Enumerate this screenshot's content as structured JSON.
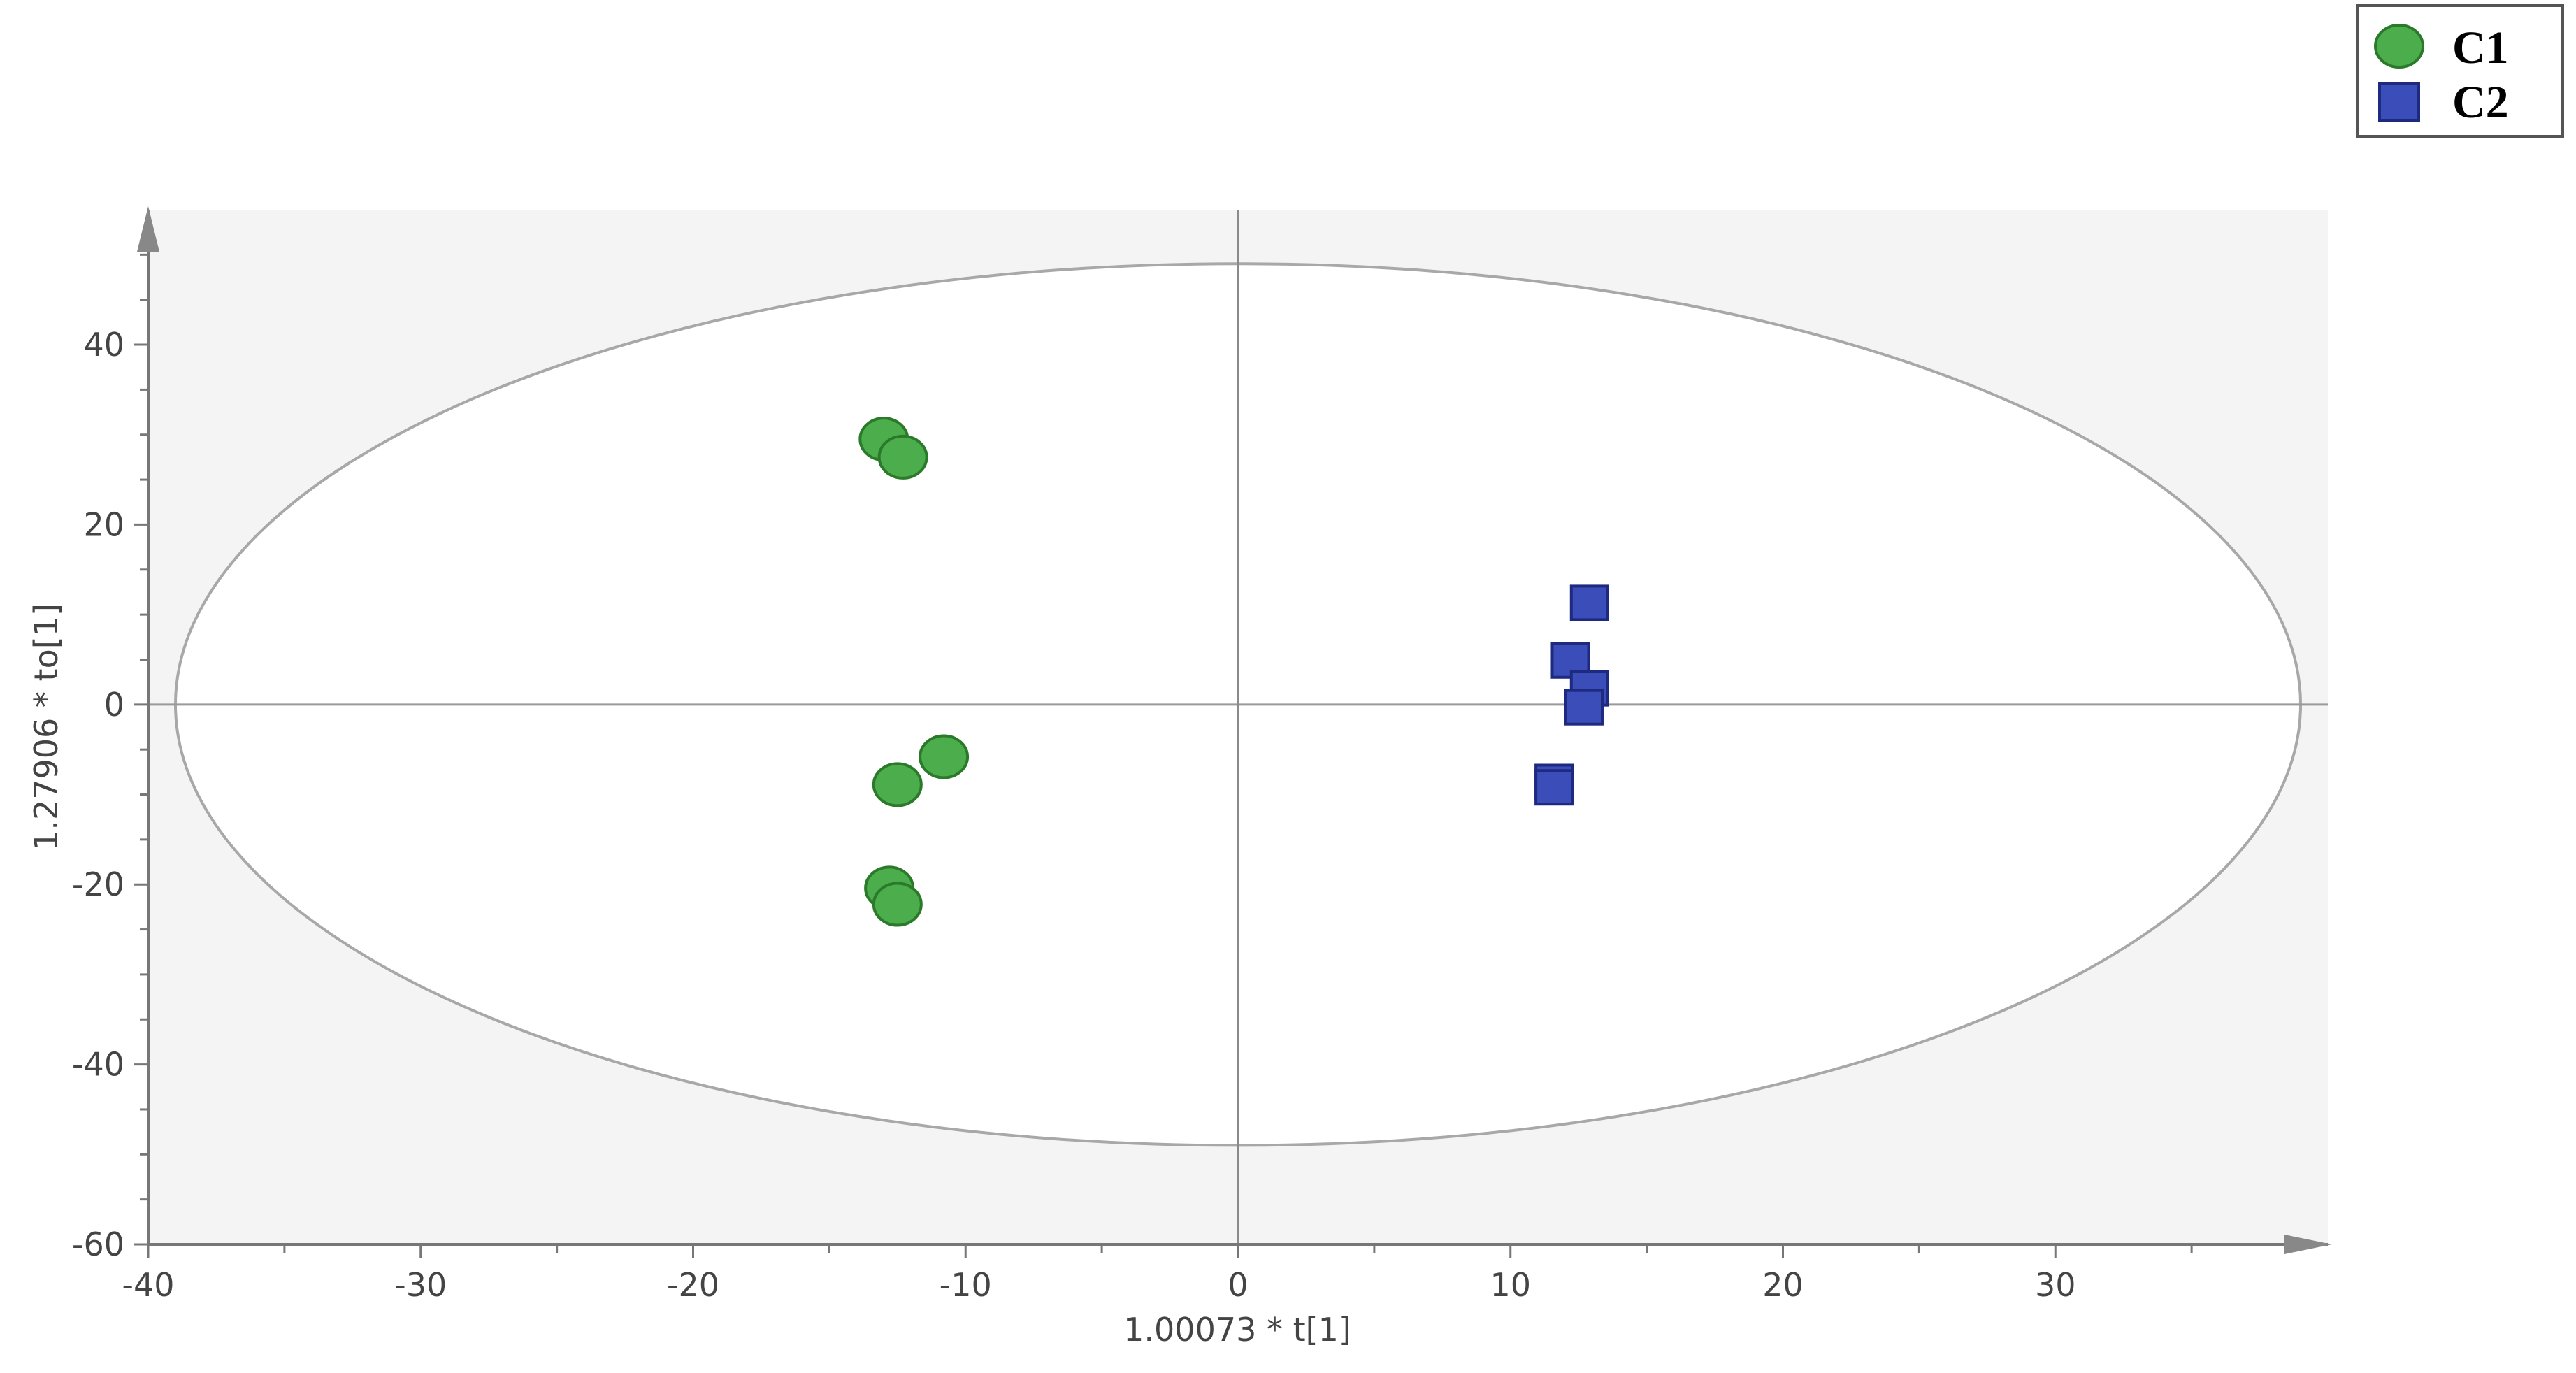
{
  "chart_data": {
    "type": "scatter",
    "xlabel": "1.00073 * t[1]",
    "ylabel": "1.27906 * to[1]",
    "xlim": [
      -40,
      40
    ],
    "ylim": [
      -60,
      60
    ],
    "xticks": [
      -40,
      -30,
      -20,
      -10,
      0,
      10,
      20,
      30
    ],
    "yticks": [
      -60,
      -40,
      -20,
      0,
      20,
      40
    ],
    "grid": false,
    "legend_position": "top-right",
    "confidence_ellipse": {
      "center": [
        0,
        0
      ],
      "x_semi_axis": 39,
      "y_semi_axis": 49
    },
    "series": [
      {
        "name": "C1",
        "marker": "circle",
        "color": "#4cad4c",
        "edge_color": "#2a7a2a",
        "points": [
          [
            -13.0,
            29.5
          ],
          [
            -12.3,
            27.5
          ],
          [
            -10.8,
            -5.8
          ],
          [
            -12.5,
            -8.9
          ],
          [
            -12.8,
            -20.4
          ],
          [
            -12.5,
            -22.2
          ]
        ]
      },
      {
        "name": "C2",
        "marker": "square",
        "color": "#3a4db8",
        "edge_color": "#1e2a80",
        "points": [
          [
            12.9,
            11.3
          ],
          [
            12.2,
            4.9
          ],
          [
            12.9,
            1.8
          ],
          [
            12.7,
            -0.3
          ],
          [
            11.6,
            -8.6
          ],
          [
            11.6,
            -9.2
          ]
        ]
      }
    ]
  },
  "legend": {
    "items": [
      {
        "label": "C1",
        "marker": "circle",
        "color": "#4cad4c"
      },
      {
        "label": "C2",
        "marker": "square",
        "color": "#3a4db8"
      }
    ]
  }
}
